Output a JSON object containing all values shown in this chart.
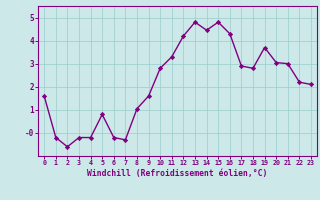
{
  "x": [
    0,
    1,
    2,
    3,
    4,
    5,
    6,
    7,
    8,
    9,
    10,
    11,
    12,
    13,
    14,
    15,
    16,
    17,
    18,
    19,
    20,
    21,
    22,
    23
  ],
  "y": [
    1.6,
    -0.2,
    -0.6,
    -0.2,
    -0.2,
    0.8,
    -0.2,
    -0.3,
    1.05,
    1.6,
    2.8,
    3.3,
    4.2,
    4.8,
    4.45,
    4.8,
    4.3,
    2.9,
    2.8,
    3.7,
    3.05,
    3.0,
    2.2,
    2.1
  ],
  "line_color": "#800080",
  "marker": "D",
  "marker_size": 2.2,
  "bg_color": "#cce8e8",
  "grid_color": "#99cccc",
  "xlabel": "Windchill (Refroidissement éolien,°C)",
  "xlabel_color": "#800080",
  "ylim": [
    -1.0,
    5.5
  ],
  "xlim": [
    -0.5,
    23.5
  ],
  "yticks": [
    0,
    1,
    2,
    3,
    4,
    5
  ],
  "ytick_labels": [
    "-0",
    "1",
    "2",
    "3",
    "4",
    "5"
  ],
  "xtick_labels": [
    "0",
    "1",
    "2",
    "3",
    "4",
    "5",
    "6",
    "7",
    "8",
    "9",
    "10",
    "11",
    "12",
    "13",
    "14",
    "15",
    "16",
    "17",
    "18",
    "19",
    "20",
    "21",
    "22",
    "23"
  ],
  "tick_color": "#800080",
  "spine_color": "#800080",
  "linewidth": 1.0,
  "figsize": [
    3.2,
    2.0
  ],
  "dpi": 100
}
